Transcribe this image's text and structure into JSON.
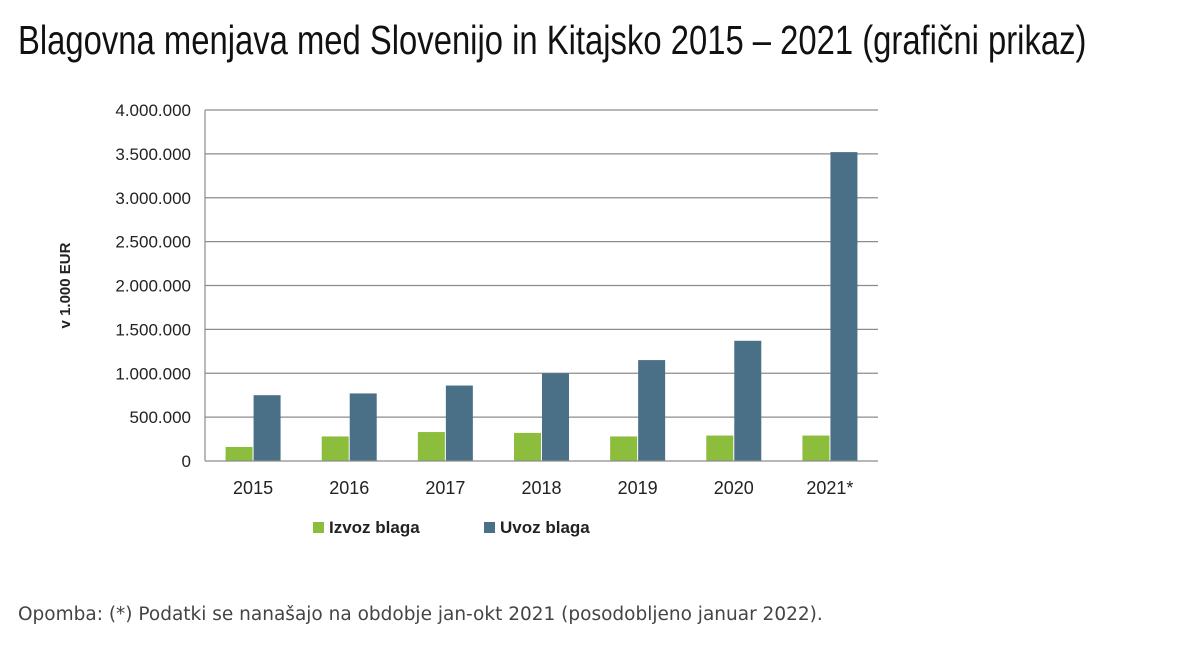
{
  "page": {
    "title": "Blagovna menjava med Slovenijo in Kitajsko 2015 – 2021 (grafični prikaz)",
    "footnote": "Opomba: (*) Podatki se nanašajo na obdobje jan-okt 2021 (posodobljeno januar 2022)."
  },
  "chart_data": {
    "type": "bar",
    "title": "",
    "xlabel": "",
    "ylabel": "v 1.000 EUR",
    "categories": [
      "2015",
      "2016",
      "2017",
      "2018",
      "2019",
      "2020",
      "2021*"
    ],
    "series": [
      {
        "name": "Izvoz blaga",
        "color": "#8dbd3c",
        "values": [
          160000,
          280000,
          330000,
          320000,
          280000,
          290000,
          290000
        ]
      },
      {
        "name": "Uvoz blaga",
        "color": "#4a7088",
        "values": [
          750000,
          770000,
          860000,
          1000000,
          1150000,
          1370000,
          3520000
        ]
      }
    ],
    "ylim": [
      0,
      4000000
    ],
    "yticks": [
      0,
      500000,
      1000000,
      1500000,
      2000000,
      2500000,
      3000000,
      3500000,
      4000000
    ],
    "ytick_labels": [
      "0",
      "500.000",
      "1.000.000",
      "1.500.000",
      "2.000.000",
      "2.500.000",
      "3.000.000",
      "3.500.000",
      "4.000.000"
    ],
    "grid": true,
    "legend_position": "bottom-center"
  }
}
